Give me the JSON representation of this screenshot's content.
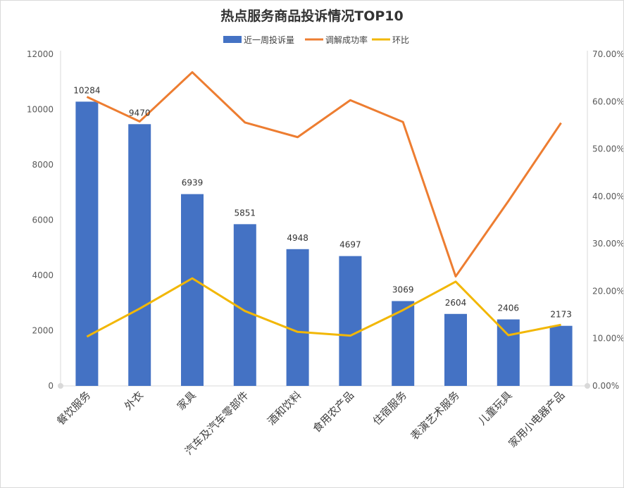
{
  "chart_data": {
    "type": "bar",
    "title": "热点服务商品投诉情况TOP10",
    "categories": [
      "餐饮服务",
      "外衣",
      "家具",
      "汽车及汽车零部件",
      "酒和饮料",
      "食用农产品",
      "住宿服务",
      "表演艺术服务",
      "儿童玩具",
      "家用小电器产品"
    ],
    "series": [
      {
        "name": "近一周投诉量",
        "type": "bar",
        "axis": "left",
        "color": "#4472C4",
        "values": [
          10284,
          9470,
          6939,
          5851,
          4948,
          4697,
          3069,
          2604,
          2406,
          2173
        ]
      },
      {
        "name": "调解成功率",
        "type": "line",
        "axis": "right",
        "color": "#ED7D31",
        "values": [
          0.61,
          0.558,
          0.662,
          0.556,
          0.525,
          0.603,
          0.557,
          0.231,
          0.39,
          0.555
        ]
      },
      {
        "name": "环比",
        "type": "line",
        "axis": "right",
        "color": "#F2B705",
        "values": [
          0.104,
          0.163,
          0.227,
          0.158,
          0.114,
          0.106,
          0.16,
          0.22,
          0.107,
          0.129
        ]
      }
    ],
    "y_left": {
      "min": 0,
      "max": 12000,
      "ticks": [
        "0",
        "2000",
        "4000",
        "6000",
        "8000",
        "10000",
        "12000"
      ]
    },
    "y_right": {
      "min": 0,
      "max": 0.7,
      "ticks": [
        "0.00%",
        "10.00%",
        "20.00%",
        "30.00%",
        "40.00%",
        "50.00%",
        "60.00%",
        "70.00%"
      ]
    },
    "legend_position": "top-center",
    "grid": false
  }
}
